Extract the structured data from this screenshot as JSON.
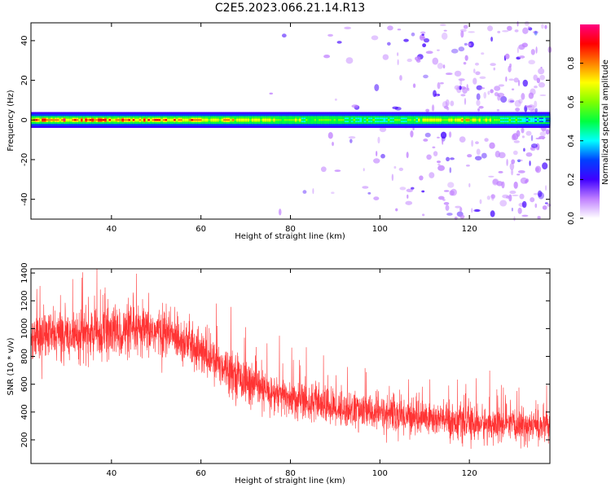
{
  "title": "C2E5.2023.066.21.14.R13",
  "chart_data": [
    {
      "type": "heatmap",
      "xlabel": "Height of straight line (km)",
      "ylabel": "Frequency (Hz)",
      "xlim": [
        22,
        138
      ],
      "ylim": [
        -50,
        49
      ],
      "x_ticks": [
        40,
        60,
        80,
        100,
        120
      ],
      "x_tick_labels": [
        "40",
        "60",
        "80",
        "100",
        "120"
      ],
      "y_ticks": [
        40,
        20,
        0,
        -20,
        -40
      ],
      "y_tick_labels": [
        "40",
        "20",
        "0",
        "-20",
        "-40"
      ],
      "band": {
        "center_hz": 0,
        "half_width_hz": 2.5,
        "description_points": [
          {
            "x": 22,
            "amplitude": 0.85
          },
          {
            "x": 60,
            "amplitude": 0.75
          },
          {
            "x": 80,
            "amplitude": 0.6
          },
          {
            "x": 100,
            "amplitude": 0.5
          },
          {
            "x": 118,
            "amplitude": 0.7
          },
          {
            "x": 138,
            "amplitude": 0.4
          }
        ]
      },
      "noise_onset_km": 80,
      "colorbar": {
        "label": "Normalized spectral amplitude",
        "range": [
          0.0,
          1.0
        ],
        "ticks": [
          0.0,
          0.2,
          0.4,
          0.6,
          0.8
        ],
        "tick_labels": [
          "0.0",
          "0.2",
          "0.4",
          "0.6",
          "0.8"
        ],
        "colors": [
          "#ffffff",
          "#c080ff",
          "#4000ff",
          "#0040ff",
          "#00ffff",
          "#00ff40",
          "#80ff00",
          "#ffff00",
          "#ff8000",
          "#ff0000",
          "#ff0080"
        ]
      },
      "grid": false
    },
    {
      "type": "line",
      "xlabel": "Height of straight line (km)",
      "ylabel": "SNR (10 * v/v)",
      "xlim": [
        22,
        138
      ],
      "ylim": [
        30,
        1430
      ],
      "x_ticks": [
        40,
        60,
        80,
        100,
        120
      ],
      "x_tick_labels": [
        "40",
        "60",
        "80",
        "100",
        "120"
      ],
      "y_ticks": [
        1400,
        1200,
        1000,
        800,
        600,
        400,
        200
      ],
      "y_tick_labels": [
        "1400",
        "1200",
        "1000",
        "800",
        "600",
        "400",
        "200"
      ],
      "series": [
        {
          "color": "#ff0000",
          "envelope": {
            "x": [
              22,
              30,
              40,
              50,
              55,
              58,
              60,
              63,
              66,
              70,
              75,
              80,
              90,
              100,
              110,
              120,
              130,
              138
            ],
            "mean": [
              950,
              960,
              970,
              980,
              940,
              880,
              830,
              760,
              720,
              620,
              540,
              500,
              430,
              390,
              360,
              320,
              300,
              300
            ],
            "spread": [
              150,
              160,
              170,
              160,
              150,
              150,
              150,
              140,
              140,
              140,
              130,
              130,
              120,
              120,
              120,
              120,
              110,
              110
            ]
          }
        }
      ],
      "grid": false
    }
  ]
}
